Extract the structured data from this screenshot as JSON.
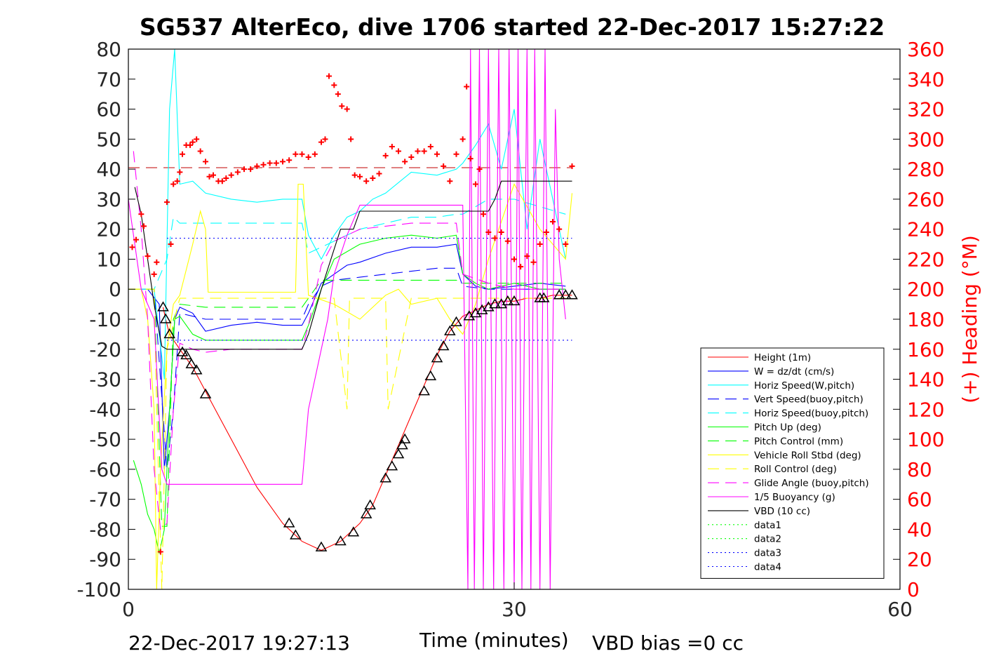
{
  "title": "SG537 AlterEco, dive 1706 started 22-Dec-2017 15:27:22",
  "footer": {
    "date": "22-Dec-2017 19:27:13",
    "xlabel": "Time (minutes)",
    "vbd_bias": "VBD bias =0 cc"
  },
  "colors": {
    "red": "#ff0000",
    "blue": "#0000ff",
    "cyan": "#00ffff",
    "green": "#00ff00",
    "yellow": "#ffff00",
    "magenta": "#ff00ff",
    "black": "#000000",
    "darkred": "#c00000"
  },
  "chart_data": {
    "type": "line",
    "title": "SG537 AlterEco, dive 1706 started 22-Dec-2017 15:27:22",
    "xlabel": "Time (minutes)",
    "ylabel_right": "(+) Heading (°M)",
    "xlim": [
      0,
      60
    ],
    "ylim": [
      -100,
      80
    ],
    "ylim_right": [
      0,
      360
    ],
    "xticks": [
      "0",
      "30",
      "60"
    ],
    "yticks": [
      "80",
      "70",
      "60",
      "50",
      "40",
      "30",
      "20",
      "10",
      "0",
      "-10",
      "-20",
      "-30",
      "-40",
      "-50",
      "-60",
      "-70",
      "-80",
      "-90",
      "-100"
    ],
    "yticks_right": [
      "360",
      "340",
      "320",
      "300",
      "280",
      "260",
      "240",
      "220",
      "200",
      "180",
      "160",
      "140",
      "120",
      "100",
      "80",
      "60",
      "40",
      "20",
      "0"
    ],
    "legend_position": "lower-right",
    "series": [
      {
        "name": "Height (1m)",
        "color": "#ff0000",
        "style": "solid",
        "x": [
          2.7,
          2.9,
          3.2,
          4.0,
          5.0,
          6.0,
          8.0,
          10.0,
          12.0,
          13.5,
          14.5,
          15.0,
          15.5,
          16.5,
          17.0,
          18.0,
          19.0,
          20.0,
          21.0,
          22.0,
          23.0,
          24.0,
          25.0,
          26.0,
          27.0,
          28.0,
          29.0,
          30.0,
          31.0,
          32.0,
          33.0,
          34.0,
          34.5
        ],
        "y": [
          -6,
          -10,
          -15,
          -20,
          -26,
          -34,
          -50,
          -66,
          -78,
          -84,
          -86,
          -87,
          -86,
          -84,
          -82,
          -78,
          -72,
          -62,
          -52,
          -42,
          -32,
          -22,
          -14,
          -9,
          -7,
          -5,
          -4,
          -4,
          -3,
          -3,
          -2,
          -2,
          -2
        ]
      },
      {
        "name": "W = dz/dt (cm/s)",
        "color": "#0000ff",
        "style": "solid",
        "x": [
          0,
          1.5,
          2.4,
          2.8,
          3.2,
          3.6,
          4.0,
          5.0,
          6.0,
          8.0,
          10.0,
          12.0,
          13.5,
          14.0,
          15.0,
          16.0,
          17.0,
          18.0,
          20.0,
          22.0,
          24.0,
          25.5,
          26.0,
          27.0,
          28.0,
          30.0,
          32.0,
          34.0
        ],
        "y": [
          0,
          0,
          -5,
          -60,
          -40,
          -10,
          -6,
          -8,
          -14,
          -12,
          -11,
          -12,
          -12,
          -8,
          2,
          5,
          8,
          9,
          12,
          14,
          14,
          15,
          5,
          1,
          0,
          1,
          2,
          1
        ]
      },
      {
        "name": "Horiz Speed(W,pitch)",
        "color": "#00ffff",
        "style": "solid",
        "x": [
          0,
          2.0,
          2.8,
          3.2,
          3.6,
          4.0,
          5.0,
          6.0,
          8.0,
          10.0,
          12.0,
          13.5,
          14.0,
          15.0,
          16.0,
          17.0,
          18.0,
          19.0,
          20.0,
          22.0,
          24.0,
          25.5,
          26.0,
          27.0,
          28.0,
          29.0,
          30.0,
          31.0,
          32.0,
          33.0,
          34.0
        ],
        "y": [
          0,
          0,
          -30,
          60,
          80,
          35,
          36,
          32,
          30,
          29,
          30,
          30,
          18,
          10,
          18,
          24,
          26,
          30,
          32,
          39,
          38,
          40,
          42,
          48,
          55,
          40,
          60,
          20,
          50,
          30,
          10
        ]
      },
      {
        "name": "Vert Speed(buoy,pitch)",
        "color": "#0000ff",
        "style": "dashed",
        "x": [
          0,
          2.0,
          3.0,
          3.5,
          4.0,
          6.0,
          8.0,
          10.0,
          12.0,
          13.5,
          14.0,
          15.0,
          16.0,
          18.0,
          20.0,
          22.0,
          24.0,
          25.5,
          26.0,
          28.0,
          30.0,
          34.0
        ],
        "y": [
          0,
          0,
          -60,
          -40,
          -8,
          -10,
          -10,
          -10,
          -10,
          -10,
          -5,
          1,
          3,
          4,
          5,
          6,
          7,
          7,
          1,
          0,
          0,
          0
        ]
      },
      {
        "name": "Horiz Speed(buoy,pitch)",
        "color": "#00ffff",
        "style": "dashed",
        "x": [
          0,
          2.0,
          3.0,
          3.5,
          4.0,
          6.0,
          8.0,
          10.0,
          12.0,
          13.5,
          14.0,
          16.0,
          18.0,
          20.0,
          22.0,
          24.0,
          25.5,
          26.0,
          28.0,
          30.0,
          34.0
        ],
        "y": [
          0,
          0,
          10,
          24,
          22,
          22,
          22,
          22,
          22,
          22,
          12,
          16,
          20,
          22,
          24,
          24,
          25,
          25,
          30,
          30,
          25
        ]
      },
      {
        "name": "Pitch Up (deg)",
        "color": "#00ff00",
        "style": "solid",
        "x": [
          0.4,
          1.0,
          1.5,
          2.0,
          2.4,
          2.8,
          3.2,
          3.6,
          4.0,
          5.0,
          6.0,
          8.0,
          10.0,
          12.0,
          13.5,
          14.0,
          15.0,
          16.0,
          18.0,
          20.0,
          22.0,
          24.0,
          25.5,
          26.0,
          27.0,
          28.0,
          30.0,
          32.0,
          34.0
        ],
        "y": [
          -57,
          -65,
          -75,
          -80,
          -88,
          -80,
          -40,
          -10,
          -9,
          -15,
          -17,
          -17,
          -17,
          -17,
          -17,
          -12,
          0,
          10,
          15,
          17,
          18,
          17,
          18,
          5,
          2,
          0,
          2,
          0,
          0
        ]
      },
      {
        "name": "Pitch Control (mm)",
        "color": "#00ff00",
        "style": "dashed",
        "x": [
          0,
          2.0,
          2.6,
          3.0,
          3.5,
          4.0,
          6.0,
          8.0,
          10.0,
          12.0,
          13.5,
          14.0,
          15.0,
          18.0,
          20.0,
          22.0,
          24.0,
          25.5,
          26.0,
          28.0,
          30.0,
          34.0
        ],
        "y": [
          0,
          0,
          -79,
          -79,
          -10,
          -5,
          -6,
          -6,
          -6,
          -6,
          -6,
          -3,
          3,
          3,
          3,
          3,
          3,
          3,
          2,
          2,
          2,
          2
        ]
      },
      {
        "name": "Vehicle Roll Stbd (deg)",
        "color": "#ffff00",
        "style": "solid",
        "x": [
          0,
          1.0,
          1.5,
          2.0,
          2.2,
          2.5,
          3.0,
          3.5,
          4.0,
          5.0,
          5.6,
          6.0,
          6.2,
          8.0,
          10.0,
          12.0,
          13.0,
          13.2,
          13.6,
          14.0,
          16.0,
          18.0,
          20.0,
          21.0,
          22.0,
          24.0,
          25.0,
          26.0,
          27.0,
          28.0,
          30.0,
          32.0,
          34.0,
          34.5
        ],
        "y": [
          0,
          0,
          -10,
          -40,
          -100,
          -60,
          -20,
          -5,
          -2,
          15,
          26,
          20,
          -1,
          -1,
          -1,
          -1,
          -1,
          35,
          35,
          -2,
          -5,
          -10,
          -2,
          0,
          -5,
          -3,
          -10,
          -15,
          -5,
          10,
          35,
          20,
          10,
          32
        ]
      },
      {
        "name": "Roll Control (deg)",
        "color": "#ffff00",
        "style": "dashed",
        "x": [
          0,
          2.0,
          2.2,
          2.6,
          3.0,
          4.0,
          6.0,
          8.0,
          10.0,
          12.0,
          14.0,
          16.0,
          17.0,
          17.2,
          18.0,
          20.0,
          20.2,
          22.0,
          24.0,
          26.0,
          28.0,
          30.0,
          34.0
        ],
        "y": [
          0,
          0,
          -40,
          -100,
          -20,
          -3,
          -3,
          -3,
          -3,
          -3,
          -3,
          -3,
          -40,
          -3,
          -3,
          -3,
          -40,
          -3,
          -3,
          -3,
          -3,
          -3,
          -3
        ]
      },
      {
        "name": "Glide Angle (buoy,pitch)",
        "color": "#ff00ff",
        "style": "dashed",
        "x": [
          0.4,
          1.0,
          1.5,
          2.0,
          2.5,
          3.0,
          3.5,
          4.0,
          5.0,
          6.0,
          8.0,
          10.0,
          12.0,
          13.5,
          14.0,
          15.0,
          16.0,
          18.0,
          20.0,
          22.0,
          24.0,
          25.5,
          26.0,
          28.0,
          30.0,
          32.0,
          34.0
        ],
        "y": [
          46,
          20,
          -10,
          -60,
          -80,
          -78,
          -40,
          -18,
          -20,
          -21,
          -20,
          -20,
          -20,
          -20,
          -12,
          8,
          16,
          20,
          21,
          22,
          22,
          22,
          5,
          2,
          0,
          0,
          0
        ]
      },
      {
        "name": "1/5 Buoyancy (g)",
        "color": "#ff00ff",
        "style": "solid",
        "x": [
          0,
          1.0,
          2.0,
          2.6,
          3.0,
          13.5,
          14.0,
          15.5,
          16.0,
          17.0,
          18.0,
          19.0,
          20.0,
          24.0,
          26.0,
          26.4,
          26.6,
          26.9,
          27.3,
          27.6,
          28.0,
          28.4,
          28.8,
          29.2,
          29.6,
          30.0,
          30.3,
          30.6,
          31.0,
          31.3,
          31.6,
          32.0,
          32.4,
          32.8,
          33.2,
          33.5,
          34.0
        ],
        "y": [
          30,
          0,
          -10,
          -60,
          -65,
          -65,
          -40,
          -10,
          5,
          18,
          28,
          28,
          28,
          28,
          28,
          -100,
          80,
          -100,
          80,
          -100,
          80,
          -100,
          80,
          -100,
          80,
          -100,
          80,
          -100,
          80,
          -100,
          80,
          -100,
          80,
          -100,
          60,
          10,
          -10
        ]
      },
      {
        "name": "VBD (10 cc)",
        "color": "#000000",
        "style": "solid",
        "x": [
          0.5,
          1.0,
          2.0,
          2.6,
          3.0,
          13.5,
          14.0,
          15.0,
          16.5,
          17.5,
          18.0,
          19.0,
          28.0,
          28.5,
          29.0,
          34.5
        ],
        "y": [
          34,
          25,
          -5,
          -19,
          -20,
          -20,
          -15,
          0,
          20,
          20,
          26,
          26,
          26,
          30,
          36,
          36
        ]
      },
      {
        "name": "data1",
        "color": "#00ff00",
        "style": "dotted",
        "x": [],
        "y": []
      },
      {
        "name": "data2",
        "color": "#00ff00",
        "style": "dotted",
        "x": [],
        "y": []
      },
      {
        "name": "data3",
        "color": "#0000ff",
        "style": "dotted",
        "x": [
          3,
          34.5
        ],
        "y": [
          17,
          17
        ]
      },
      {
        "name": "data4",
        "color": "#0000ff",
        "style": "dotted",
        "x": [
          3,
          34.5
        ],
        "y": [
          -17,
          -17
        ]
      }
    ],
    "heading_reference": {
      "color": "#c00000",
      "style": "dashed",
      "x": [
        0,
        34.5
      ],
      "heading": 281
    },
    "heading_points": {
      "color": "#ff0000",
      "marker": "+",
      "x": [
        0.3,
        0.6,
        1.0,
        1.2,
        1.5,
        2.0,
        2.2,
        2.5,
        3.0,
        3.3,
        3.5,
        3.8,
        4.0,
        4.2,
        4.5,
        4.8,
        5.0,
        5.3,
        5.6,
        6.0,
        6.3,
        6.6,
        7.0,
        7.3,
        7.6,
        8.0,
        8.5,
        9.0,
        9.5,
        10.0,
        10.5,
        11.0,
        11.5,
        12.0,
        12.5,
        13.0,
        13.5,
        14.0,
        14.5,
        15.0,
        15.3,
        15.6,
        16.0,
        16.3,
        16.6,
        17.0,
        17.3,
        17.6,
        18.0,
        18.5,
        19.0,
        19.5,
        20.0,
        20.5,
        21.0,
        21.5,
        22.0,
        22.5,
        23.0,
        23.5,
        24.0,
        24.5,
        25.0,
        25.5,
        26.0,
        26.3,
        26.6,
        27.0,
        27.3,
        27.6,
        28.0,
        28.5,
        29.0,
        29.5,
        30.0,
        30.5,
        31.0,
        31.5,
        32.0,
        32.5,
        33.0,
        33.5,
        34.0,
        34.5
      ],
      "heading": [
        228,
        233,
        250,
        242,
        222,
        210,
        218,
        25,
        258,
        230,
        270,
        272,
        278,
        290,
        296,
        296,
        298,
        300,
        292,
        285,
        275,
        276,
        272,
        272,
        274,
        276,
        278,
        280,
        280,
        282,
        283,
        284,
        284,
        285,
        286,
        290,
        290,
        288,
        290,
        298,
        300,
        342,
        336,
        330,
        322,
        320,
        300,
        276,
        275,
        272,
        274,
        277,
        289,
        295,
        292,
        285,
        288,
        292,
        292,
        295,
        290,
        282,
        272,
        290,
        300,
        335,
        287,
        270,
        280,
        250,
        238,
        234,
        238,
        232,
        220,
        215,
        222,
        218,
        230,
        238,
        245,
        240,
        230,
        282
      ]
    },
    "markers": {
      "color": "#000000",
      "shape": "triangle",
      "x": [
        2.7,
        2.9,
        3.2,
        4.2,
        4.5,
        4.9,
        5.3,
        6.0,
        12.5,
        13.0,
        15.0,
        16.5,
        17.5,
        18.5,
        18.8,
        20.0,
        20.5,
        21.0,
        21.3,
        21.5,
        23.0,
        23.5,
        24.0,
        24.5,
        25.0,
        25.5,
        26.5,
        27.0,
        27.5,
        28.0,
        28.5,
        29.0,
        29.5,
        30.0,
        32.0,
        32.3,
        33.5,
        34.0,
        34.5
      ],
      "y": [
        -6,
        -10,
        -15,
        -21,
        -22,
        -25,
        -27,
        -35,
        -78,
        -82,
        -86,
        -84,
        -81,
        -75,
        -72,
        -63,
        -59,
        -55,
        -52,
        -50,
        -34,
        -29,
        -23,
        -19,
        -14,
        -11,
        -9,
        -8,
        -7,
        -6,
        -5,
        -5,
        -4,
        -4,
        -3,
        -3,
        -2,
        -2,
        -2
      ]
    }
  }
}
